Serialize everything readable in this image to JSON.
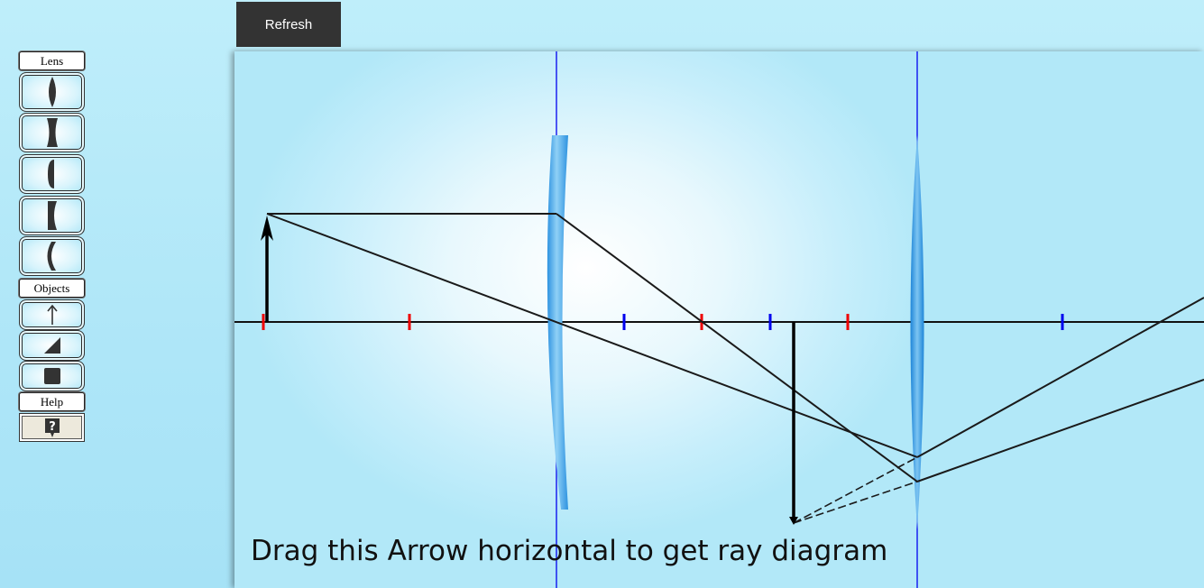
{
  "toolbar": {
    "refresh_label": "Refresh",
    "lens_label": "Lens",
    "objects_label": "Objects",
    "help_label": "Help",
    "lens_tools": [
      "biconvex-lens",
      "biconcave-lens",
      "plano-convex-lens",
      "plano-concave-lens",
      "meniscus-lens"
    ],
    "object_tools": [
      "arrow-object",
      "triangle-object",
      "square-object"
    ],
    "help_icon": "question-mark-icon"
  },
  "diagram": {
    "instruction": "Drag this Arrow horizontal to get ray diagram",
    "colors": {
      "principal_axis": "#111111",
      "lens_plane": "#0000ee",
      "focal_mark_red": "#ee0000",
      "focal_mark_blue": "#0000ee",
      "lens_fill": "#5ab2ec",
      "ray": "#1a1a1a"
    }
  }
}
